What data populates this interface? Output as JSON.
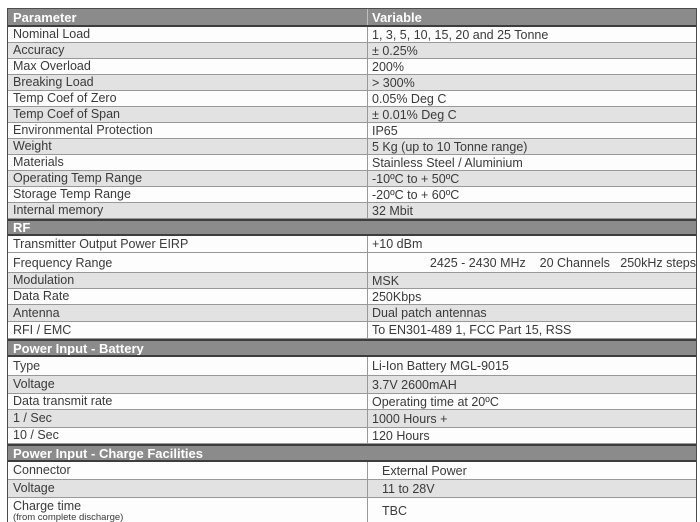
{
  "colors": {
    "section_bg": "#8b8b8b",
    "header_text": "#ffffff",
    "zebra": "#e2e2e3",
    "row_border": "#999999",
    "dark_border": "#3d3d3d",
    "outer_border": "#4c4c4c",
    "text": "#3a3a3a"
  },
  "table": {
    "columns": [
      "Parameter",
      "Variable"
    ],
    "rows": [
      {
        "kind": "header",
        "param": "Parameter",
        "value": "Variable",
        "h": 18
      },
      {
        "kind": "data",
        "param": "Nominal Load",
        "value": "1, 3, 5, 10, 15, 20 and 25 Tonne",
        "bg": "white",
        "h": 16
      },
      {
        "kind": "data",
        "param": "Accuracy",
        "value": "± 0.25%",
        "bg": "gray",
        "h": 16
      },
      {
        "kind": "data",
        "param": "Max Overload",
        "value": "200%",
        "bg": "white",
        "h": 16
      },
      {
        "kind": "data",
        "param": "Breaking Load",
        "value": "> 300%",
        "bg": "gray",
        "h": 16
      },
      {
        "kind": "data",
        "param": "Temp Coef of Zero",
        "value": "0.05% Deg C",
        "bg": "white",
        "h": 16
      },
      {
        "kind": "data",
        "param": "Temp Coef of Span",
        "value": "± 0.01% Deg C",
        "bg": "gray",
        "h": 16
      },
      {
        "kind": "data",
        "param": "Environmental Protection",
        "value": "IP65",
        "bg": "white",
        "h": 16
      },
      {
        "kind": "data",
        "param": "Weight",
        "value": "5 Kg (up to 10 Tonne range)",
        "bg": "gray",
        "h": 16
      },
      {
        "kind": "data",
        "param": "Materials",
        "value": "Stainless Steel / Aluminium",
        "bg": "white",
        "h": 16
      },
      {
        "kind": "data",
        "param": "Operating Temp Range",
        "value": "-10ºC to + 50ºC",
        "bg": "gray",
        "h": 16
      },
      {
        "kind": "data",
        "param": "Storage Temp Range",
        "value": "-20ºC to + 60ºC",
        "bg": "white",
        "h": 16
      },
      {
        "kind": "data",
        "param": "Internal memory",
        "value": "32 Mbit",
        "bg": "gray",
        "h": 16
      },
      {
        "kind": "section",
        "param": "RF",
        "h": 17
      },
      {
        "kind": "data",
        "param": "Transmitter Output Power EIRP",
        "value": "+10 dBm",
        "bg": "white",
        "h": 17
      },
      {
        "kind": "data",
        "param": "Frequency Range",
        "value": "2425 - 2430 MHz    20 Channels   250kHz steps",
        "bg": "white",
        "h": 20,
        "valign": "bottom"
      },
      {
        "kind": "data",
        "param": "Modulation",
        "value": "MSK",
        "bg": "gray",
        "h": 16
      },
      {
        "kind": "data",
        "param": "Data Rate",
        "value": "250Kbps",
        "bg": "white",
        "h": 16
      },
      {
        "kind": "data",
        "param": "Antenna",
        "value": "Dual patch antennas",
        "bg": "gray",
        "h": 17
      },
      {
        "kind": "data",
        "param": "RFI / EMC",
        "value": "To EN301-489 1, FCC Part 15, RSS",
        "bg": "white",
        "h": 17
      },
      {
        "kind": "section",
        "param": "Power Input - Battery",
        "h": 18
      },
      {
        "kind": "data",
        "param": "Type",
        "value": "Li-Ion Battery MGL-9015",
        "bg": "white",
        "h": 19
      },
      {
        "kind": "data",
        "param": "Voltage",
        "value": "3.7V 2600mAH",
        "bg": "gray",
        "h": 18
      },
      {
        "kind": "data",
        "param": "Data transmit rate",
        "value": "Operating time at 20ºC",
        "bg": "white",
        "h": 16
      },
      {
        "kind": "data",
        "param": "1 / Sec",
        "value": "1000 Hours +",
        "bg": "gray",
        "h": 18
      },
      {
        "kind": "data",
        "param": "10 / Sec",
        "value": "120 Hours",
        "bg": "white",
        "h": 16
      },
      {
        "kind": "section",
        "param": "Power Input - Charge Facilities",
        "h": 18
      },
      {
        "kind": "data",
        "param": "Connector",
        "value": "External Power",
        "bg": "white",
        "h": 18,
        "indent": true
      },
      {
        "kind": "data",
        "param": "Voltage",
        "value": "11 to 28V",
        "bg": "gray",
        "h": 18,
        "indent": true
      },
      {
        "kind": "data",
        "param": "Charge time",
        "sub": "(from complete discharge)",
        "value": "TBC",
        "bg": "white",
        "h": 26,
        "indent": true
      }
    ]
  }
}
